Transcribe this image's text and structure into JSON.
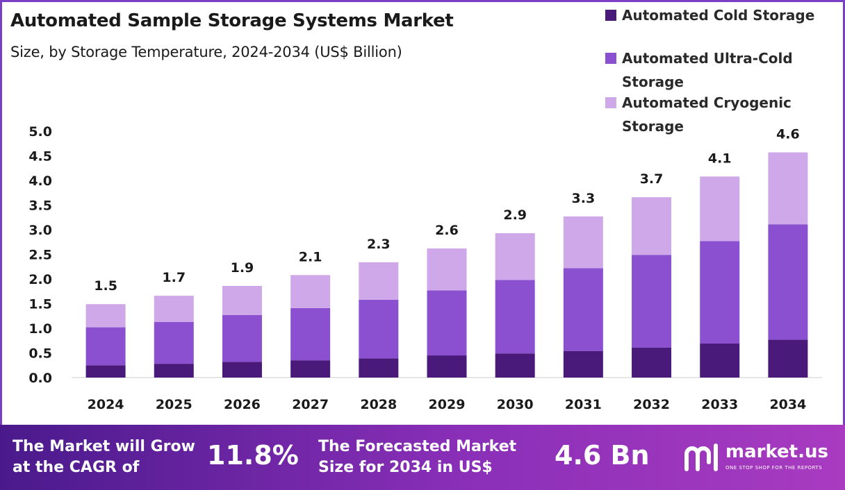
{
  "header": {
    "title": "Automated Sample Storage Systems Market",
    "subtitle": "Size, by Storage Temperature, 2024-2034 (US$ Billion)"
  },
  "legend": {
    "items": [
      {
        "label": "Automated Cold Storage",
        "color": "#4a1a7a"
      },
      {
        "label": "Automated Ultra-Cold Storage",
        "color": "#8a50d0"
      },
      {
        "label": "Automated Cryogenic Storage",
        "color": "#cfa8ea"
      }
    ]
  },
  "chart_data": {
    "type": "bar",
    "stacked": true,
    "title": "Automated Sample Storage Systems Market",
    "subtitle": "Size, by Storage Temperature, 2024-2034 (US$ Billion)",
    "categories": [
      "2024",
      "2025",
      "2026",
      "2027",
      "2028",
      "2029",
      "2030",
      "2031",
      "2032",
      "2033",
      "2034"
    ],
    "series": [
      {
        "name": "Automated Cold Storage",
        "color": "#4a1a7a",
        "values": [
          0.25,
          0.28,
          0.32,
          0.35,
          0.39,
          0.45,
          0.49,
          0.54,
          0.61,
          0.69,
          0.77
        ]
      },
      {
        "name": "Automated Ultra-Cold Storage",
        "color": "#8a50d0",
        "values": [
          0.77,
          0.85,
          0.95,
          1.06,
          1.19,
          1.32,
          1.49,
          1.68,
          1.88,
          2.08,
          2.34
        ]
      },
      {
        "name": "Automated Cryogenic Storage",
        "color": "#cfa8ea",
        "values": [
          0.47,
          0.53,
          0.59,
          0.67,
          0.76,
          0.85,
          0.95,
          1.05,
          1.17,
          1.31,
          1.46
        ]
      }
    ],
    "totals_labels": [
      "1.5",
      "1.7",
      "1.9",
      "2.1",
      "2.3",
      "2.6",
      "2.9",
      "3.3",
      "3.7",
      "4.1",
      "4.6"
    ],
    "y_ticks": [
      "0.0",
      "0.5",
      "1.0",
      "1.5",
      "2.0",
      "2.5",
      "3.0",
      "3.5",
      "4.0",
      "4.5",
      "5.0"
    ],
    "ylim": [
      0,
      5
    ],
    "xlabel": "",
    "ylabel": "",
    "grid": false,
    "legend_position": "top-right"
  },
  "footer": {
    "cagr_text_line1": "The Market will Grow",
    "cagr_text_line2": "at the CAGR of",
    "cagr_value": "11.8%",
    "forecast_text_line1": "The Forecasted Market",
    "forecast_text_line2": "Size for 2034 in US$",
    "forecast_value": "4.6 Bn",
    "logo_name": "market.us",
    "logo_tagline": "ONE STOP SHOP FOR THE REPORTS"
  }
}
